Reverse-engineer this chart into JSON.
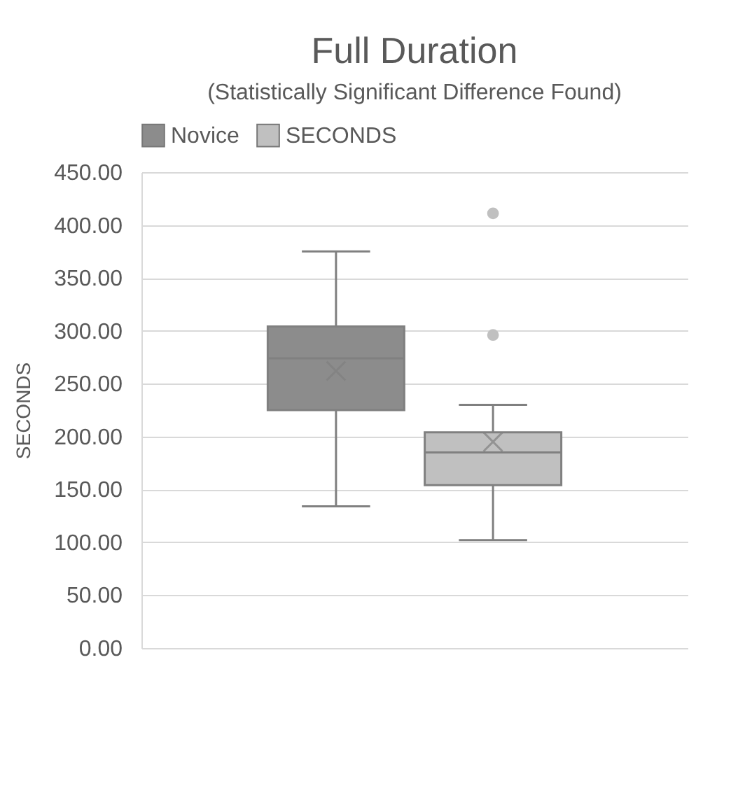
{
  "chart_data": {
    "type": "box",
    "title": "Full Duration",
    "subtitle": "(Statistically Significant Difference Found)",
    "ylabel": "SECONDS",
    "categories": [
      null
    ],
    "series": [
      {
        "name": "Novice",
        "color": "#8c8c8c",
        "boxes": [
          {
            "low": 134,
            "q1": 225,
            "median": 274,
            "q3": 304,
            "high": 375,
            "mean": 262
          }
        ]
      },
      {
        "name": "SECONDS",
        "color": "#c0c0c0",
        "boxes": [
          {
            "low": 102,
            "q1": 154,
            "median": 185,
            "q3": 204,
            "high": 230,
            "mean": 195,
            "outliers": [
              296,
              411
            ]
          }
        ]
      }
    ],
    "ylim": [
      0,
      450
    ],
    "yticks": [
      {
        "value": 0,
        "label": "0.00"
      },
      {
        "value": 50,
        "label": "50.00"
      },
      {
        "value": 100,
        "label": "100.00"
      },
      {
        "value": 150,
        "label": "150.00"
      },
      {
        "value": 200,
        "label": "200.00"
      },
      {
        "value": 250,
        "label": "250.00"
      },
      {
        "value": 300,
        "label": "300.00"
      },
      {
        "value": 350,
        "label": "350.00"
      },
      {
        "value": 400,
        "label": "400.00"
      },
      {
        "value": 450,
        "label": "450.00"
      }
    ],
    "grid": "y",
    "legend": "top",
    "tick_labels": "y"
  }
}
